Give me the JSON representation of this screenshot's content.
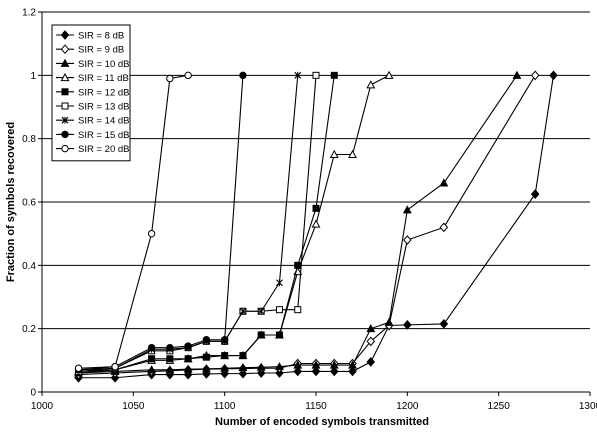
{
  "chart_data": {
    "type": "line",
    "xlabel": "Number of encoded symbols transmitted",
    "ylabel": "Fraction of symbols recovered",
    "xlim": [
      1000,
      1300
    ],
    "ylim": [
      0,
      1.2
    ],
    "x_ticks": [
      1000,
      1050,
      1100,
      1150,
      1200,
      1250,
      1300
    ],
    "x_tick_labels": [
      "1000",
      "1050",
      "1100",
      "1150",
      "1200",
      "1250",
      "1300"
    ],
    "y_ticks": [
      0,
      0.2,
      0.4,
      0.6,
      0.8,
      1,
      1.2
    ],
    "y_tick_labels": [
      "0",
      "0.2",
      "0.4",
      "0.6",
      "0.8",
      "1",
      "1.2"
    ],
    "grid": "horizontal",
    "legend_position": "top-left",
    "series": [
      {
        "name": "SIR = 8 dB",
        "marker": "diamond-filled",
        "x": [
          1020,
          1040,
          1060,
          1070,
          1080,
          1090,
          1100,
          1110,
          1120,
          1130,
          1140,
          1150,
          1160,
          1170,
          1180,
          1190,
          1200,
          1220,
          1270,
          1280
        ],
        "y": [
          0.045,
          0.045,
          0.055,
          0.055,
          0.055,
          0.057,
          0.058,
          0.058,
          0.06,
          0.06,
          0.065,
          0.065,
          0.065,
          0.065,
          0.095,
          0.21,
          0.212,
          0.215,
          0.625,
          1.0
        ]
      },
      {
        "name": "SIR = 9 dB",
        "marker": "diamond-open",
        "x": [
          1020,
          1040,
          1060,
          1070,
          1080,
          1090,
          1100,
          1110,
          1120,
          1130,
          1140,
          1150,
          1160,
          1170,
          1180,
          1190,
          1200,
          1220,
          1270
        ],
        "y": [
          0.055,
          0.06,
          0.065,
          0.067,
          0.07,
          0.072,
          0.073,
          0.074,
          0.075,
          0.075,
          0.09,
          0.09,
          0.09,
          0.09,
          0.16,
          0.21,
          0.48,
          0.52,
          1.0
        ]
      },
      {
        "name": "SIR = 10 dB",
        "marker": "triangle-filled",
        "x": [
          1020,
          1040,
          1060,
          1070,
          1080,
          1090,
          1100,
          1110,
          1120,
          1130,
          1140,
          1150,
          1160,
          1170,
          1180,
          1190,
          1200,
          1220,
          1260
        ],
        "y": [
          0.06,
          0.065,
          0.07,
          0.07,
          0.072,
          0.073,
          0.075,
          0.077,
          0.078,
          0.08,
          0.085,
          0.085,
          0.085,
          0.085,
          0.2,
          0.22,
          0.575,
          0.66,
          1.0
        ]
      },
      {
        "name": "SIR = 11 dB",
        "marker": "triangle-open",
        "x": [
          1020,
          1040,
          1060,
          1070,
          1080,
          1090,
          1100,
          1110,
          1120,
          1130,
          1140,
          1150,
          1160,
          1170,
          1180,
          1190
        ],
        "y": [
          0.065,
          0.07,
          0.1,
          0.1,
          0.105,
          0.115,
          0.115,
          0.115,
          0.18,
          0.18,
          0.38,
          0.53,
          0.75,
          0.75,
          0.97,
          1.0
        ]
      },
      {
        "name": "SIR = 12 dB",
        "marker": "square-filled",
        "x": [
          1020,
          1040,
          1060,
          1070,
          1080,
          1090,
          1100,
          1110,
          1120,
          1130,
          1140,
          1150,
          1160
        ],
        "y": [
          0.06,
          0.07,
          0.105,
          0.105,
          0.105,
          0.11,
          0.115,
          0.115,
          0.18,
          0.18,
          0.4,
          0.58,
          1.0
        ]
      },
      {
        "name": "SIR = 13 dB",
        "marker": "square-open",
        "x": [
          1020,
          1040,
          1060,
          1070,
          1080,
          1090,
          1100,
          1110,
          1120,
          1130,
          1140,
          1150
        ],
        "y": [
          0.065,
          0.075,
          0.13,
          0.13,
          0.14,
          0.16,
          0.16,
          0.255,
          0.255,
          0.26,
          0.26,
          1.0
        ]
      },
      {
        "name": "SIR = 14 dB",
        "marker": "x",
        "x": [
          1020,
          1040,
          1060,
          1070,
          1080,
          1090,
          1100,
          1110,
          1120,
          1130,
          1140
        ],
        "y": [
          0.07,
          0.075,
          0.135,
          0.135,
          0.14,
          0.16,
          0.16,
          0.255,
          0.255,
          0.345,
          1.0
        ]
      },
      {
        "name": "SIR = 15 dB",
        "marker": "circle-filled",
        "x": [
          1020,
          1040,
          1060,
          1070,
          1080,
          1090,
          1100,
          1110
        ],
        "y": [
          0.07,
          0.08,
          0.14,
          0.14,
          0.145,
          0.165,
          0.165,
          1.0
        ]
      },
      {
        "name": "SIR = 20 dB",
        "marker": "circle-open",
        "x": [
          1020,
          1040,
          1060,
          1070,
          1080
        ],
        "y": [
          0.075,
          0.08,
          0.5,
          0.99,
          1.0
        ]
      }
    ]
  }
}
